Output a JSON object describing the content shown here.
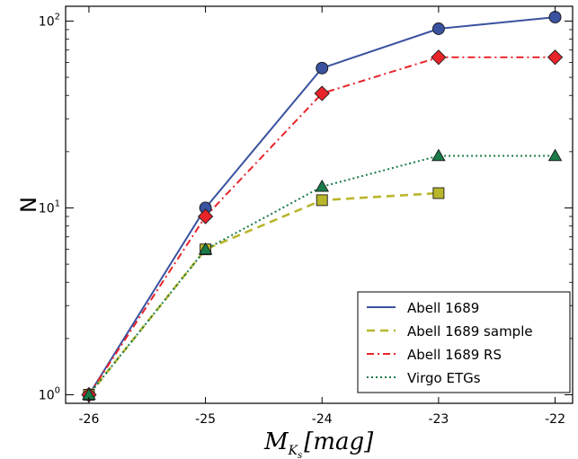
{
  "chart_data": {
    "type": "line",
    "xlabel": {
      "main": "M",
      "sub": "K",
      "subsub": "s",
      "unit": "[mag]"
    },
    "ylabel": "N",
    "xlim": [
      -26.2,
      -21.85
    ],
    "ylim": [
      0.9,
      120
    ],
    "yscale": "log",
    "xticks": [
      -26,
      -25,
      -24,
      -23,
      -22
    ],
    "xtick_labels": [
      "-26",
      "-25",
      "-24",
      "-23",
      "-22"
    ],
    "yticks": [
      {
        "value": 1,
        "base": "10",
        "exp": "0"
      },
      {
        "value": 10,
        "base": "10",
        "exp": "1"
      },
      {
        "value": 100,
        "base": "10",
        "exp": "2"
      }
    ],
    "grid": false,
    "legend_position": "lower-right",
    "series": [
      {
        "name": "Abell 1689",
        "color": "#3a52a0",
        "line": "solid",
        "marker": "circle",
        "x": [
          -26,
          -25,
          -24,
          -23,
          -22
        ],
        "y": [
          1,
          10,
          56,
          91,
          105
        ]
      },
      {
        "name": "Abell 1689 sample",
        "color": "#b8b62a",
        "line": "dashed",
        "marker": "square",
        "x": [
          -26,
          -25,
          -24,
          -23
        ],
        "y": [
          1,
          6,
          11,
          12
        ]
      },
      {
        "name": "Abell 1689 RS",
        "color": "#e8242a",
        "line": "dashdot",
        "marker": "diamond",
        "x": [
          -26,
          -25,
          -24,
          -23,
          -22
        ],
        "y": [
          1,
          9,
          41,
          64,
          64
        ]
      },
      {
        "name": "Virgo ETGs",
        "color": "#1a7a48",
        "line": "dotted",
        "marker": "triangle",
        "x": [
          -26,
          -25,
          -24,
          -23,
          -22
        ],
        "y": [
          1,
          6,
          13,
          19,
          19
        ]
      }
    ]
  }
}
